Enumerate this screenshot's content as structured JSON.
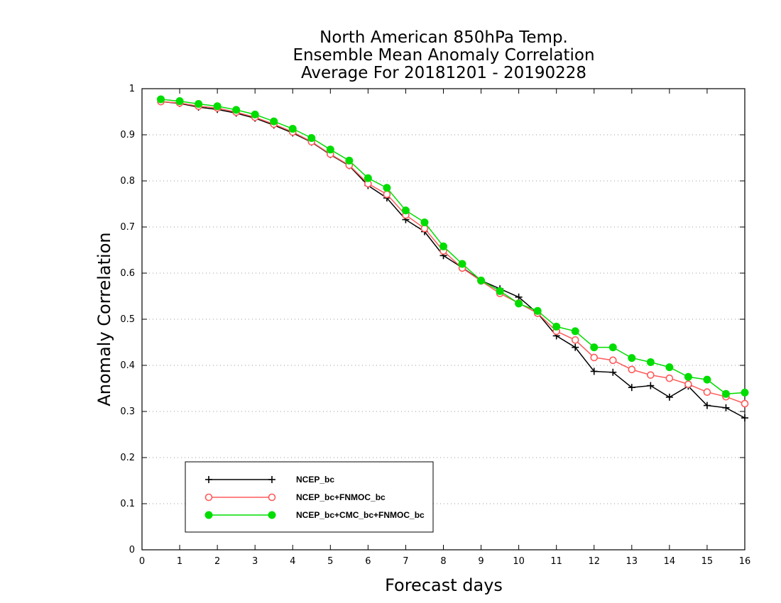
{
  "chart_data": {
    "type": "line",
    "title": [
      "North American 850hPa Temp.",
      "Ensemble Mean Anomaly Correlation",
      "Average For 20181201 - 20190228"
    ],
    "xlabel": "Forecast days",
    "ylabel": "Anomaly Correlation",
    "xlim": [
      0,
      16
    ],
    "ylim": [
      0,
      1
    ],
    "x_ticks": [
      "0",
      "1",
      "2",
      "3",
      "4",
      "5",
      "6",
      "7",
      "8",
      "9",
      "10",
      "11",
      "12",
      "13",
      "14",
      "15",
      "16"
    ],
    "y_ticks": [
      "0",
      "0.1",
      "0.2",
      "0.3",
      "0.4",
      "0.5",
      "0.6",
      "0.7",
      "0.8",
      "0.9",
      "1"
    ],
    "grid": "horizontal dotted",
    "legend_position": "bottom-left",
    "x": [
      0.5,
      1,
      1.5,
      2,
      2.5,
      3,
      3.5,
      4,
      4.5,
      5,
      5.5,
      6,
      6.5,
      7,
      7.5,
      8,
      8.5,
      9,
      9.5,
      10,
      10.5,
      11,
      11.5,
      12,
      12.5,
      13,
      13.5,
      14,
      14.5,
      15,
      15.5,
      16
    ],
    "series": [
      {
        "name": "NCEP_bc",
        "color": "#000000",
        "marker": "plus",
        "values": [
          0.972,
          0.968,
          0.96,
          0.955,
          0.947,
          0.936,
          0.921,
          0.904,
          0.884,
          0.857,
          0.833,
          0.79,
          0.763,
          0.716,
          0.69,
          0.638,
          0.612,
          0.584,
          0.566,
          0.548,
          0.513,
          0.464,
          0.439,
          0.387,
          0.385,
          0.352,
          0.356,
          0.331,
          0.355,
          0.313,
          0.308,
          0.286
        ]
      },
      {
        "name": "NCEP_bc+FNMOC_bc",
        "color": "#ff5a5a",
        "marker": "open-circle",
        "values": [
          0.972,
          0.969,
          0.962,
          0.958,
          0.949,
          0.938,
          0.923,
          0.906,
          0.885,
          0.858,
          0.834,
          0.794,
          0.771,
          0.726,
          0.697,
          0.648,
          0.611,
          0.583,
          0.556,
          0.535,
          0.513,
          0.474,
          0.455,
          0.417,
          0.411,
          0.391,
          0.379,
          0.372,
          0.359,
          0.342,
          0.332,
          0.317
        ]
      },
      {
        "name": "NCEP_bc+CMC_bc+FNMOC_bc",
        "color": "#00dd00",
        "marker": "filled-circle",
        "values": [
          0.977,
          0.973,
          0.967,
          0.962,
          0.954,
          0.944,
          0.929,
          0.913,
          0.893,
          0.868,
          0.844,
          0.806,
          0.785,
          0.736,
          0.71,
          0.658,
          0.62,
          0.584,
          0.561,
          0.534,
          0.518,
          0.484,
          0.474,
          0.439,
          0.439,
          0.416,
          0.407,
          0.396,
          0.375,
          0.369,
          0.338,
          0.341
        ]
      }
    ]
  }
}
